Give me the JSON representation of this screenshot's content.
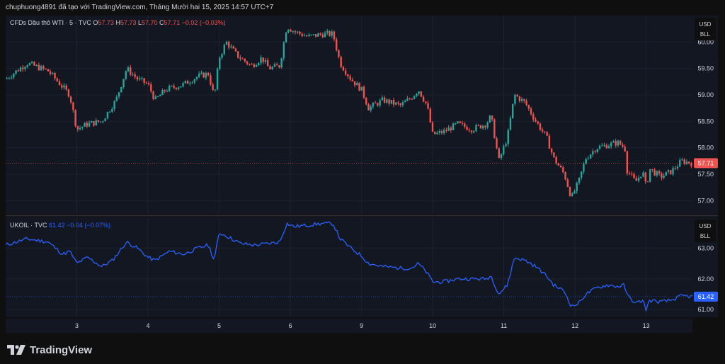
{
  "header": {
    "caption": "chuphuong4891 đã tạo với TradingView.com, Tháng Mười hai 15, 2025 14:57 UTC+7"
  },
  "brand": {
    "name": "TradingView"
  },
  "colors": {
    "background": "#0f0f0f",
    "pane": "#131722",
    "up": "#26a69a",
    "down": "#ef5350",
    "line": "#2962ff",
    "text": "#d1d4dc"
  },
  "pane1": {
    "symbol": "CFDs Dầu thô WTI · 5 · TVC",
    "o_label": "O",
    "o_value": "57.73",
    "h_label": "H",
    "h_value": "57.73",
    "l_label": "L",
    "l_value": "57.70",
    "c_label": "C",
    "c_value": "57.71",
    "change": "−0.02 (−0.03%)",
    "currency": "USD",
    "unit": "BLL",
    "last_price": "57.71",
    "y_ticks": [
      "60.00",
      "59.50",
      "59.00",
      "58.50",
      "58.00",
      "57.50",
      "57.00"
    ]
  },
  "pane2": {
    "symbol": "UKOIL · TVC",
    "value": "61.42",
    "change": "−0.04 (−0.07%)",
    "currency": "USD",
    "unit": "BLL",
    "last_price": "61.42",
    "y_ticks": [
      "63.00",
      "62.00",
      "61.00"
    ]
  },
  "x_ticks": [
    "3",
    "4",
    "5",
    "6",
    "9",
    "10",
    "11",
    "12",
    "13"
  ],
  "chart_data": [
    {
      "type": "candlestick",
      "title": "CFDs Dầu thô WTI · 5 · TVC",
      "ylim": [
        56.75,
        60.5
      ],
      "y_ticks": [
        57.0,
        57.5,
        58.0,
        58.5,
        59.0,
        59.5,
        60.0
      ],
      "x_tick_labels": [
        "3",
        "4",
        "5",
        "6",
        "9",
        "10",
        "11",
        "12",
        "13"
      ],
      "x_tick_pos": [
        1,
        2,
        3,
        4,
        5,
        6,
        7,
        8,
        9
      ],
      "x_range": [
        0,
        9.65
      ],
      "last": 57.71,
      "close_path": [
        [
          0,
          59.3
        ],
        [
          0.3,
          59.6
        ],
        [
          0.6,
          59.45
        ],
        [
          0.9,
          59.0
        ],
        [
          1.0,
          58.35
        ],
        [
          1.15,
          58.45
        ],
        [
          1.35,
          58.5
        ],
        [
          1.55,
          58.9
        ],
        [
          1.7,
          59.5
        ],
        [
          1.85,
          59.3
        ],
        [
          2.0,
          59.2
        ],
        [
          2.1,
          58.9
        ],
        [
          2.25,
          59.1
        ],
        [
          2.5,
          59.2
        ],
        [
          2.7,
          59.35
        ],
        [
          2.85,
          59.4
        ],
        [
          2.93,
          58.95
        ],
        [
          3.0,
          59.7
        ],
        [
          3.1,
          60.0
        ],
        [
          3.25,
          59.75
        ],
        [
          3.45,
          59.55
        ],
        [
          3.6,
          59.7
        ],
        [
          3.7,
          59.5
        ],
        [
          3.85,
          59.55
        ],
        [
          3.95,
          60.3
        ],
        [
          4.05,
          60.2
        ],
        [
          4.25,
          60.1
        ],
        [
          4.45,
          60.15
        ],
        [
          4.6,
          60.15
        ],
        [
          4.7,
          59.6
        ],
        [
          4.85,
          59.3
        ],
        [
          5.0,
          59.1
        ],
        [
          5.1,
          58.75
        ],
        [
          5.3,
          58.9
        ],
        [
          5.55,
          58.8
        ],
        [
          5.7,
          58.95
        ],
        [
          5.8,
          59.1
        ],
        [
          5.92,
          58.8
        ],
        [
          6.0,
          58.25
        ],
        [
          6.15,
          58.3
        ],
        [
          6.35,
          58.45
        ],
        [
          6.55,
          58.35
        ],
        [
          6.75,
          58.45
        ],
        [
          6.82,
          58.6
        ],
        [
          6.93,
          57.75
        ],
        [
          7.05,
          58.2
        ],
        [
          7.15,
          59.0
        ],
        [
          7.3,
          58.85
        ],
        [
          7.45,
          58.5
        ],
        [
          7.6,
          58.2
        ],
        [
          7.7,
          57.8
        ],
        [
          7.85,
          57.5
        ],
        [
          7.95,
          57.05
        ],
        [
          8.05,
          57.35
        ],
        [
          8.15,
          57.8
        ],
        [
          8.3,
          58.0
        ],
        [
          8.45,
          58.05
        ],
        [
          8.6,
          58.1
        ],
        [
          8.7,
          58.0
        ],
        [
          8.72,
          57.6
        ],
        [
          8.85,
          57.35
        ],
        [
          8.95,
          57.55
        ],
        [
          9.0,
          57.25
        ],
        [
          9.05,
          57.6
        ],
        [
          9.2,
          57.45
        ],
        [
          9.35,
          57.55
        ],
        [
          9.5,
          57.75
        ],
        [
          9.65,
          57.71
        ]
      ]
    },
    {
      "type": "line",
      "title": "UKOIL · TVC",
      "ylim": [
        60.75,
        64.0
      ],
      "y_ticks": [
        61.0,
        62.0,
        63.0
      ],
      "x_tick_labels": [
        "3",
        "4",
        "5",
        "6",
        "9",
        "10",
        "11",
        "12",
        "13"
      ],
      "x_tick_pos": [
        1,
        2,
        3,
        4,
        5,
        6,
        7,
        8,
        9
      ],
      "x_range": [
        0,
        9.65
      ],
      "last": 61.42,
      "points": [
        [
          0,
          63.1
        ],
        [
          0.3,
          63.3
        ],
        [
          0.6,
          63.2
        ],
        [
          0.8,
          62.8
        ],
        [
          0.9,
          62.9
        ],
        [
          1.0,
          62.5
        ],
        [
          1.15,
          62.7
        ],
        [
          1.35,
          62.4
        ],
        [
          1.5,
          62.6
        ],
        [
          1.7,
          63.2
        ],
        [
          1.85,
          63.0
        ],
        [
          2.0,
          62.7
        ],
        [
          2.1,
          62.6
        ],
        [
          2.3,
          62.9
        ],
        [
          2.5,
          62.8
        ],
        [
          2.7,
          63.0
        ],
        [
          2.85,
          63.1
        ],
        [
          2.93,
          62.6
        ],
        [
          3.0,
          63.5
        ],
        [
          3.1,
          63.4
        ],
        [
          3.3,
          63.15
        ],
        [
          3.5,
          63.1
        ],
        [
          3.7,
          63.15
        ],
        [
          3.85,
          63.2
        ],
        [
          3.95,
          63.8
        ],
        [
          4.05,
          63.7
        ],
        [
          4.25,
          63.75
        ],
        [
          4.45,
          63.8
        ],
        [
          4.6,
          63.8
        ],
        [
          4.7,
          63.3
        ],
        [
          4.85,
          63.0
        ],
        [
          5.0,
          62.75
        ],
        [
          5.1,
          62.5
        ],
        [
          5.3,
          62.4
        ],
        [
          5.55,
          62.35
        ],
        [
          5.7,
          62.35
        ],
        [
          5.8,
          62.5
        ],
        [
          5.92,
          62.2
        ],
        [
          6.0,
          61.9
        ],
        [
          6.15,
          61.9
        ],
        [
          6.35,
          62.0
        ],
        [
          6.55,
          62.0
        ],
        [
          6.75,
          62.0
        ],
        [
          6.82,
          62.1
        ],
        [
          6.93,
          61.5
        ],
        [
          7.05,
          61.8
        ],
        [
          7.15,
          62.7
        ],
        [
          7.3,
          62.6
        ],
        [
          7.45,
          62.4
        ],
        [
          7.6,
          62.1
        ],
        [
          7.7,
          61.8
        ],
        [
          7.85,
          61.6
        ],
        [
          7.95,
          61.1
        ],
        [
          8.05,
          61.2
        ],
        [
          8.15,
          61.5
        ],
        [
          8.3,
          61.7
        ],
        [
          8.45,
          61.8
        ],
        [
          8.6,
          61.75
        ],
        [
          8.7,
          61.8
        ],
        [
          8.72,
          61.5
        ],
        [
          8.85,
          61.2
        ],
        [
          8.95,
          61.3
        ],
        [
          9.0,
          61.0
        ],
        [
          9.05,
          61.3
        ],
        [
          9.2,
          61.25
        ],
        [
          9.35,
          61.3
        ],
        [
          9.5,
          61.45
        ],
        [
          9.65,
          61.42
        ]
      ]
    }
  ]
}
